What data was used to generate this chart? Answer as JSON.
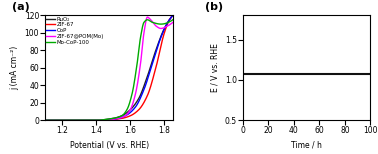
{
  "panel_a": {
    "title": "(a)",
    "xlabel": "Potential (V vs. RHE)",
    "ylabel": "j (mA cm⁻²)",
    "xlim": [
      1.1,
      1.85
    ],
    "ylim": [
      0,
      120
    ],
    "xticks": [
      1.2,
      1.4,
      1.6,
      1.8
    ],
    "yticks": [
      0,
      20,
      40,
      60,
      80,
      100,
      120
    ],
    "curves": [
      {
        "label": "RuO₂",
        "color": "#222222",
        "x_points": [
          1.1,
          1.4,
          1.5,
          1.55,
          1.6,
          1.65,
          1.7,
          1.75,
          1.8,
          1.83,
          1.85
        ],
        "y_points": [
          0,
          0,
          2,
          5,
          12,
          25,
          50,
          80,
          105,
          115,
          120
        ]
      },
      {
        "label": "ZIF-67",
        "color": "#ff0000",
        "x_points": [
          1.1,
          1.45,
          1.55,
          1.6,
          1.65,
          1.7,
          1.75,
          1.8,
          1.83,
          1.85
        ],
        "y_points": [
          0,
          0,
          2,
          5,
          12,
          28,
          60,
          100,
          115,
          120
        ]
      },
      {
        "label": "CoP",
        "color": "#0000ff",
        "x_points": [
          1.1,
          1.43,
          1.53,
          1.58,
          1.63,
          1.68,
          1.73,
          1.78,
          1.82,
          1.85
        ],
        "y_points": [
          0,
          0,
          2,
          6,
          15,
          35,
          65,
          95,
          112,
          120
        ]
      },
      {
        "label": "ZIF-67@POM(Mo)",
        "color": "#ff00ff",
        "x_points": [
          1.1,
          1.45,
          1.53,
          1.57,
          1.6,
          1.63,
          1.66,
          1.68,
          1.7,
          1.72,
          1.75,
          1.78,
          1.82,
          1.85
        ],
        "y_points": [
          0,
          0,
          2,
          5,
          12,
          30,
          65,
          100,
          118,
          115,
          108,
          105,
          108,
          112
        ]
      },
      {
        "label": "Mo-CoP-100",
        "color": "#00aa00",
        "x_points": [
          1.1,
          1.4,
          1.5,
          1.55,
          1.58,
          1.61,
          1.64,
          1.66,
          1.68,
          1.7,
          1.73,
          1.78,
          1.85
        ],
        "y_points": [
          0,
          0,
          2,
          5,
          12,
          30,
          65,
          95,
          112,
          115,
          112,
          110,
          115
        ]
      }
    ]
  },
  "panel_b": {
    "title": "(b)",
    "xlabel": "Time / h",
    "ylabel": "E / V vs. RHE",
    "xlim": [
      0,
      100
    ],
    "ylim": [
      0.5,
      1.8
    ],
    "xticks": [
      0,
      20,
      40,
      60,
      80,
      100
    ],
    "yticks": [
      0.5,
      1.0,
      1.5
    ],
    "line_y": 1.07,
    "line_color": "#111111"
  }
}
